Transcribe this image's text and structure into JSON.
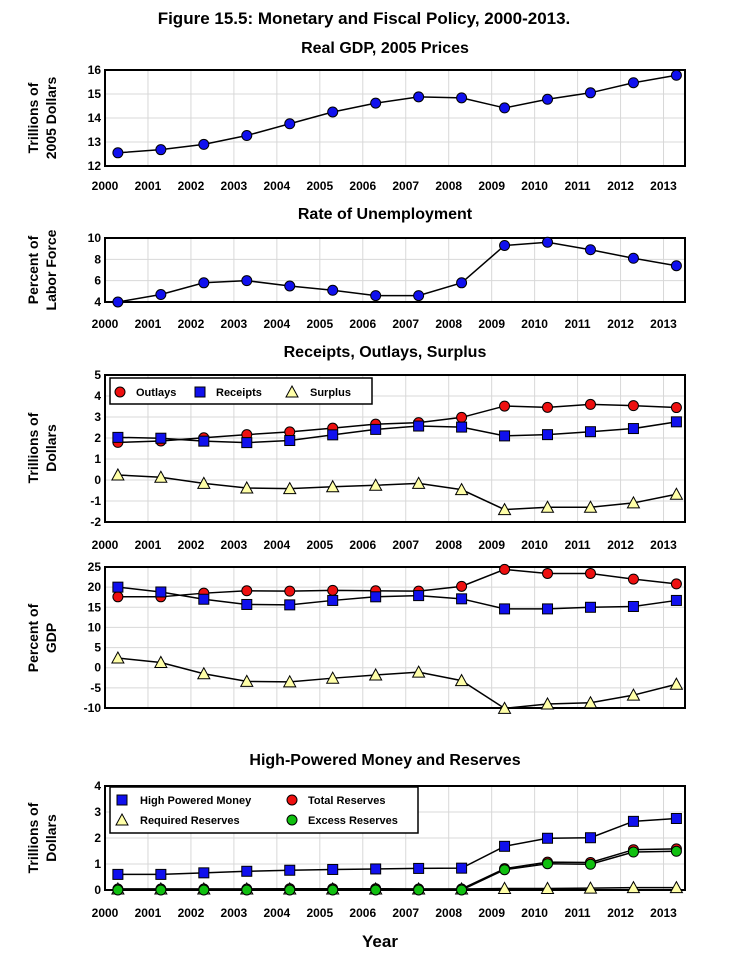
{
  "title": "Figure 15.5:  Monetary and Fiscal Policy, 2000-2013.",
  "xlabel": "Year",
  "colors": {
    "blue": "#1010ee",
    "red": "#ee1010",
    "yellow": "#ffffa8",
    "green": "#10c010",
    "grid": "#d8d8d8"
  },
  "chart_data": [
    {
      "type": "line",
      "title": "Real GDP, 2005 Prices",
      "ylabel": [
        "Trillions of",
        "2005 Dollars"
      ],
      "x": [
        2000.3,
        2001.3,
        2002.3,
        2003.3,
        2004.3,
        2005.3,
        2006.3,
        2007.3,
        2008.3,
        2009.3,
        2010.3,
        2011.3,
        2012.3,
        2013.3
      ],
      "xticks": [
        "2000",
        "2001",
        "2002",
        "2003",
        "2004",
        "2005",
        "2006",
        "2007",
        "2008",
        "2009",
        "2010",
        "2011",
        "2012",
        "2013"
      ],
      "ylim": [
        12,
        16
      ],
      "yticks": [
        12,
        13,
        14,
        15,
        16
      ],
      "series": [
        {
          "marker": "circle",
          "color": "blue",
          "values": [
            12.55,
            12.68,
            12.9,
            13.27,
            13.76,
            14.25,
            14.62,
            14.88,
            14.84,
            14.42,
            14.78,
            15.05,
            15.47,
            15.78
          ]
        }
      ]
    },
    {
      "type": "line",
      "title": "Rate of Unemployment",
      "ylabel": [
        "Percent of",
        "Labor Force"
      ],
      "x": [
        2000.3,
        2001.3,
        2002.3,
        2003.3,
        2004.3,
        2005.3,
        2006.3,
        2007.3,
        2008.3,
        2009.3,
        2010.3,
        2011.3,
        2012.3,
        2013.3
      ],
      "xticks": [
        "2000",
        "2001",
        "2002",
        "2003",
        "2004",
        "2005",
        "2006",
        "2007",
        "2008",
        "2009",
        "2010",
        "2011",
        "2012",
        "2013"
      ],
      "ylim": [
        4,
        10
      ],
      "yticks": [
        4,
        6,
        8,
        10
      ],
      "series": [
        {
          "marker": "circle",
          "color": "blue",
          "values": [
            4.0,
            4.7,
            5.8,
            6.0,
            5.5,
            5.1,
            4.6,
            4.6,
            5.8,
            9.3,
            9.6,
            8.9,
            8.1,
            7.4
          ]
        }
      ]
    },
    {
      "type": "line",
      "title": "Receipts, Outlays, Surplus",
      "ylabel": [
        "Trillions of",
        "Dollars"
      ],
      "x": [
        2000.3,
        2001.3,
        2002.3,
        2003.3,
        2004.3,
        2005.3,
        2006.3,
        2007.3,
        2008.3,
        2009.3,
        2010.3,
        2011.3,
        2012.3,
        2013.3
      ],
      "xticks": [
        "2000",
        "2001",
        "2002",
        "2003",
        "2004",
        "2005",
        "2006",
        "2007",
        "2008",
        "2009",
        "2010",
        "2011",
        "2012",
        "2013"
      ],
      "ylim": [
        -2,
        5
      ],
      "yticks": [
        -2,
        -1,
        0,
        1,
        2,
        3,
        4,
        5
      ],
      "legend": {
        "entries": [
          {
            "name": "Outlays",
            "marker": "circle",
            "color": "red"
          },
          {
            "name": "Receipts",
            "marker": "square",
            "color": "blue"
          },
          {
            "name": "Surplus",
            "marker": "triangle",
            "color": "yellow"
          }
        ]
      },
      "series": [
        {
          "name": "Outlays",
          "marker": "circle",
          "color": "red",
          "values": [
            1.79,
            1.86,
            2.01,
            2.16,
            2.29,
            2.47,
            2.66,
            2.73,
            2.98,
            3.52,
            3.46,
            3.6,
            3.54,
            3.45
          ]
        },
        {
          "name": "Receipts",
          "marker": "square",
          "color": "blue",
          "values": [
            2.03,
            1.99,
            1.85,
            1.78,
            1.88,
            2.15,
            2.41,
            2.57,
            2.52,
            2.1,
            2.16,
            2.3,
            2.45,
            2.77
          ]
        },
        {
          "name": "Surplus",
          "marker": "triangle",
          "color": "yellow",
          "values": [
            0.24,
            0.13,
            -0.16,
            -0.38,
            -0.41,
            -0.32,
            -0.25,
            -0.16,
            -0.46,
            -1.41,
            -1.3,
            -1.3,
            -1.09,
            -0.68
          ]
        }
      ]
    },
    {
      "type": "line",
      "ylabel": [
        "Percent of",
        "GDP"
      ],
      "x": [
        2000.3,
        2001.3,
        2002.3,
        2003.3,
        2004.3,
        2005.3,
        2006.3,
        2007.3,
        2008.3,
        2009.3,
        2010.3,
        2011.3,
        2012.3,
        2013.3
      ],
      "xticks": [
        "2000",
        "2001",
        "2002",
        "2003",
        "2004",
        "2005",
        "2006",
        "2007",
        "2008",
        "2009",
        "2010",
        "2011",
        "2012",
        "2013"
      ],
      "ylim": [
        -10,
        25
      ],
      "yticks": [
        -10,
        -5,
        0,
        5,
        10,
        15,
        20,
        25
      ],
      "series": [
        {
          "name": "Outlays",
          "marker": "circle",
          "color": "red",
          "values": [
            17.6,
            17.6,
            18.5,
            19.1,
            19.0,
            19.2,
            19.1,
            19.0,
            20.2,
            24.4,
            23.4,
            23.4,
            22.0,
            20.8
          ]
        },
        {
          "name": "Receipts",
          "marker": "square",
          "color": "blue",
          "values": [
            20.0,
            18.8,
            17.0,
            15.7,
            15.6,
            16.7,
            17.6,
            17.9,
            17.1,
            14.6,
            14.6,
            15.0,
            15.2,
            16.7
          ]
        },
        {
          "name": "Surplus",
          "marker": "triangle",
          "color": "yellow",
          "values": [
            2.4,
            1.3,
            -1.5,
            -3.4,
            -3.5,
            -2.6,
            -1.8,
            -1.1,
            -3.2,
            -10.1,
            -9.0,
            -8.7,
            -6.8,
            -4.1
          ]
        }
      ]
    },
    {
      "type": "line",
      "title": "High-Powered Money and Reserves",
      "ylabel": [
        "Trillions of",
        "Dollars"
      ],
      "x": [
        2000.3,
        2001.3,
        2002.3,
        2003.3,
        2004.3,
        2005.3,
        2006.3,
        2007.3,
        2008.3,
        2009.3,
        2010.3,
        2011.3,
        2012.3,
        2013.3
      ],
      "xticks": [
        "2000",
        "2001",
        "2002",
        "2003",
        "2004",
        "2005",
        "2006",
        "2007",
        "2008",
        "2009",
        "2010",
        "2011",
        "2012",
        "2013"
      ],
      "ylim": [
        0,
        4
      ],
      "yticks": [
        0,
        1,
        2,
        3,
        4
      ],
      "legend": {
        "entries": [
          {
            "name": "High Powered Money",
            "marker": "square",
            "color": "blue"
          },
          {
            "name": "Total Reserves",
            "marker": "circle",
            "color": "red"
          },
          {
            "name": "Required Reserves",
            "marker": "triangle",
            "color": "yellow"
          },
          {
            "name": "Excess Reserves",
            "marker": "circle",
            "color": "green"
          }
        ]
      },
      "series": [
        {
          "name": "High Powered Money",
          "marker": "square",
          "color": "blue",
          "values": [
            0.6,
            0.6,
            0.66,
            0.72,
            0.76,
            0.79,
            0.81,
            0.83,
            0.84,
            1.68,
            1.99,
            2.01,
            2.64,
            2.75
          ]
        },
        {
          "name": "Total Reserves",
          "marker": "circle",
          "color": "red",
          "values": [
            0.04,
            0.04,
            0.04,
            0.04,
            0.05,
            0.05,
            0.05,
            0.04,
            0.04,
            0.82,
            1.07,
            1.06,
            1.55,
            1.58
          ]
        },
        {
          "name": "Required Reserves",
          "marker": "triangle",
          "color": "yellow",
          "values": [
            0.04,
            0.04,
            0.04,
            0.04,
            0.04,
            0.04,
            0.04,
            0.04,
            0.04,
            0.06,
            0.06,
            0.07,
            0.09,
            0.09
          ]
        },
        {
          "name": "Excess Reserves",
          "marker": "circle",
          "color": "green",
          "values": [
            0.0,
            0.0,
            0.0,
            0.0,
            0.0,
            0.0,
            0.0,
            0.0,
            0.0,
            0.78,
            1.01,
            0.99,
            1.46,
            1.49
          ]
        }
      ]
    }
  ]
}
